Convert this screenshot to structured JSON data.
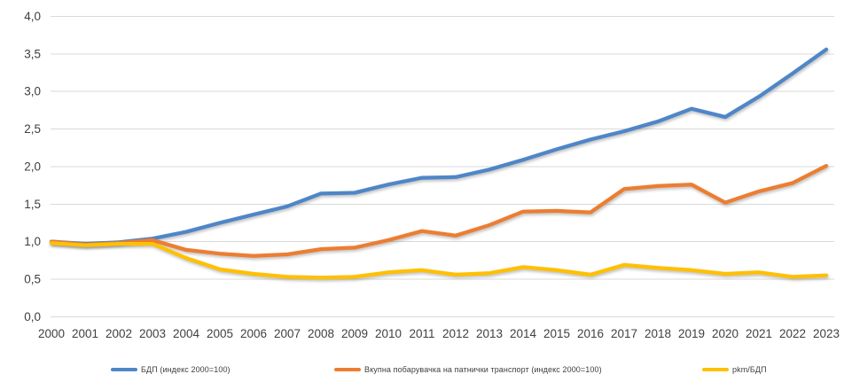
{
  "chart_data": {
    "type": "line",
    "title": "",
    "xlabel": "",
    "ylabel": "",
    "x": [
      "2000",
      "2001",
      "2002",
      "2003",
      "2004",
      "2005",
      "2006",
      "2007",
      "2008",
      "2009",
      "2010",
      "2011",
      "2012",
      "2013",
      "2014",
      "2015",
      "2016",
      "2017",
      "2018",
      "2019",
      "2020",
      "2021",
      "2022",
      "2023"
    ],
    "series": [
      {
        "id": "gdp",
        "name": "БДП (индекс 2000=100)",
        "color": "#4E86C8",
        "values": [
          1.0,
          0.97,
          0.99,
          1.04,
          1.13,
          1.25,
          1.36,
          1.47,
          1.64,
          1.65,
          1.76,
          1.85,
          1.86,
          1.96,
          2.09,
          2.23,
          2.36,
          2.47,
          2.6,
          2.77,
          2.66,
          2.93,
          3.24,
          3.56
        ]
      },
      {
        "id": "transport-demand",
        "name": "Вкупна побарувачка на патнички транспорт (индекс 2000=100)",
        "color": "#ED7D31",
        "values": [
          1.0,
          0.96,
          0.98,
          1.02,
          0.89,
          0.84,
          0.81,
          0.83,
          0.9,
          0.92,
          1.02,
          1.14,
          1.08,
          1.22,
          1.4,
          1.41,
          1.39,
          1.7,
          1.74,
          1.76,
          1.52,
          1.67,
          1.78,
          2.01
        ]
      },
      {
        "id": "pkm-gdp",
        "name": "pkm/БДП",
        "color": "#FFC000",
        "values": [
          0.98,
          0.95,
          0.97,
          0.97,
          0.78,
          0.63,
          0.57,
          0.53,
          0.52,
          0.53,
          0.59,
          0.62,
          0.56,
          0.58,
          0.66,
          0.62,
          0.56,
          0.69,
          0.65,
          0.62,
          0.57,
          0.59,
          0.53,
          0.55
        ]
      }
    ],
    "ylim": [
      0,
      4
    ],
    "ytick_step": 0.5,
    "ytick_labels": [
      "0,0",
      "0,5",
      "1,0",
      "1,5",
      "2,0",
      "2,5",
      "3,0",
      "3,5",
      "4,0"
    ],
    "grid": "horizontal",
    "gridline_color": "#d9d9d9",
    "axis_text_color": "#404040",
    "legend_position": "bottom",
    "markers": false
  }
}
